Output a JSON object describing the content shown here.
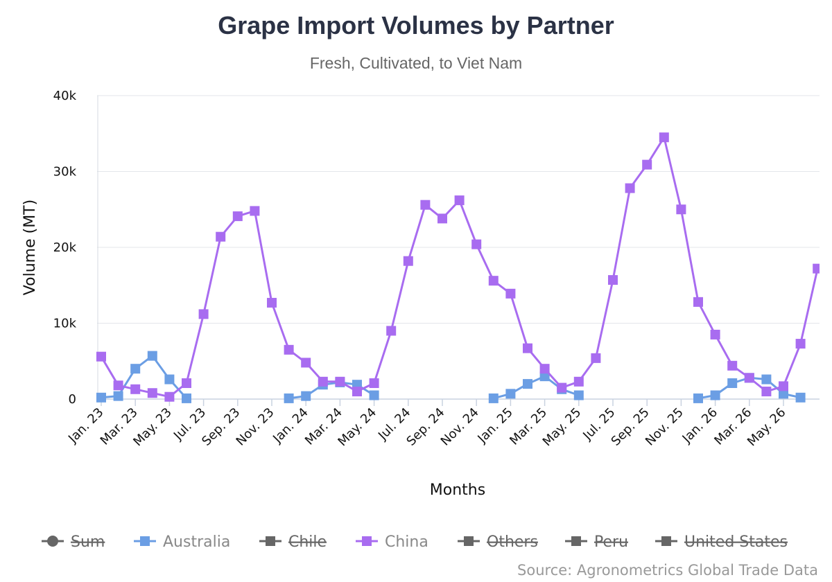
{
  "chart_data": {
    "type": "line",
    "title": "Grape Import Volumes by Partner",
    "subtitle": "Fresh, Cultivated, to Viet Nam",
    "xlabel": "Months",
    "ylabel": "Volume (MT)",
    "ylim": [
      0,
      40000
    ],
    "yticks": [
      0,
      10000,
      20000,
      30000,
      40000
    ],
    "ytick_labels": [
      "0",
      "10k",
      "20k",
      "30k",
      "40k"
    ],
    "grid": true,
    "categories": [
      "Jan. 23",
      "Feb. 23",
      "Mar. 23",
      "Apr. 23",
      "May. 23",
      "Jun. 23",
      "Jul. 23",
      "Aug. 23",
      "Sep. 23",
      "Oct. 23",
      "Nov. 23",
      "Dec. 23",
      "Jan. 24",
      "Feb. 24",
      "Mar. 24",
      "Apr. 24",
      "May. 24",
      "Jun. 24",
      "Jul. 24",
      "Aug. 24",
      "Sep. 24",
      "Oct. 24",
      "Nov. 24",
      "Dec. 24",
      "Jan. 25",
      "Feb. 25",
      "Mar. 25",
      "Apr. 25",
      "May. 25",
      "Jun. 25",
      "Jul. 25",
      "Aug. 25",
      "Sep. 25",
      "Oct. 25",
      "Nov. 25",
      "Dec. 25",
      "Jan. 26",
      "Feb. 26",
      "Mar. 26",
      "Apr. 26",
      "May. 26",
      "Jun. 26",
      "Jul. 26"
    ],
    "xtick_labels": [
      "Jan. 23",
      "Mar. 23",
      "May. 23",
      "Jul. 23",
      "Sep. 23",
      "Nov. 23",
      "Jan. 24",
      "Mar. 24",
      "May. 24",
      "Jul. 24",
      "Sep. 24",
      "Nov. 24",
      "Jan. 25",
      "Mar. 25",
      "May. 25",
      "Jul. 25",
      "Sep. 25",
      "Nov. 25",
      "Jan. 26",
      "Mar. 26",
      "May. 26"
    ],
    "series": [
      {
        "name": "Australia",
        "color": "#6b9ee4",
        "values": [
          200,
          400,
          4000,
          5700,
          2600,
          100,
          null,
          null,
          null,
          null,
          null,
          100,
          400,
          1900,
          2200,
          1900,
          500,
          null,
          null,
          null,
          null,
          null,
          null,
          100,
          700,
          2000,
          3000,
          1300,
          500,
          null,
          null,
          null,
          null,
          null,
          null,
          100,
          500,
          2100,
          2800,
          2600,
          700,
          200,
          null
        ]
      },
      {
        "name": "China",
        "color": "#a86cf0",
        "values": [
          5600,
          1800,
          1300,
          800,
          300,
          2100,
          11200,
          21400,
          24100,
          24800,
          12700,
          6500,
          4800,
          2300,
          2300,
          1000,
          2100,
          9000,
          18200,
          25600,
          23800,
          26200,
          20400,
          15600,
          13900,
          6700,
          4000,
          1500,
          2300,
          5400,
          15700,
          27800,
          30900,
          34500,
          25000,
          12800,
          8500,
          4400,
          2800,
          1000,
          1700,
          7300,
          17200
        ]
      }
    ],
    "legend": {
      "position": "bottom",
      "items": [
        {
          "name": "Sum",
          "color": "#666666",
          "hidden": true,
          "marker": "circle"
        },
        {
          "name": "Australia",
          "color": "#6b9ee4",
          "hidden": false,
          "marker": "square"
        },
        {
          "name": "Chile",
          "color": "#666666",
          "hidden": true,
          "marker": "square"
        },
        {
          "name": "China",
          "color": "#a86cf0",
          "hidden": false,
          "marker": "square"
        },
        {
          "name": "Others",
          "color": "#666666",
          "hidden": true,
          "marker": "square"
        },
        {
          "name": "Peru",
          "color": "#666666",
          "hidden": true,
          "marker": "square"
        },
        {
          "name": "United States",
          "color": "#666666",
          "hidden": true,
          "marker": "square"
        }
      ]
    },
    "credit": "Source: Agronometrics Global Trade Data"
  }
}
